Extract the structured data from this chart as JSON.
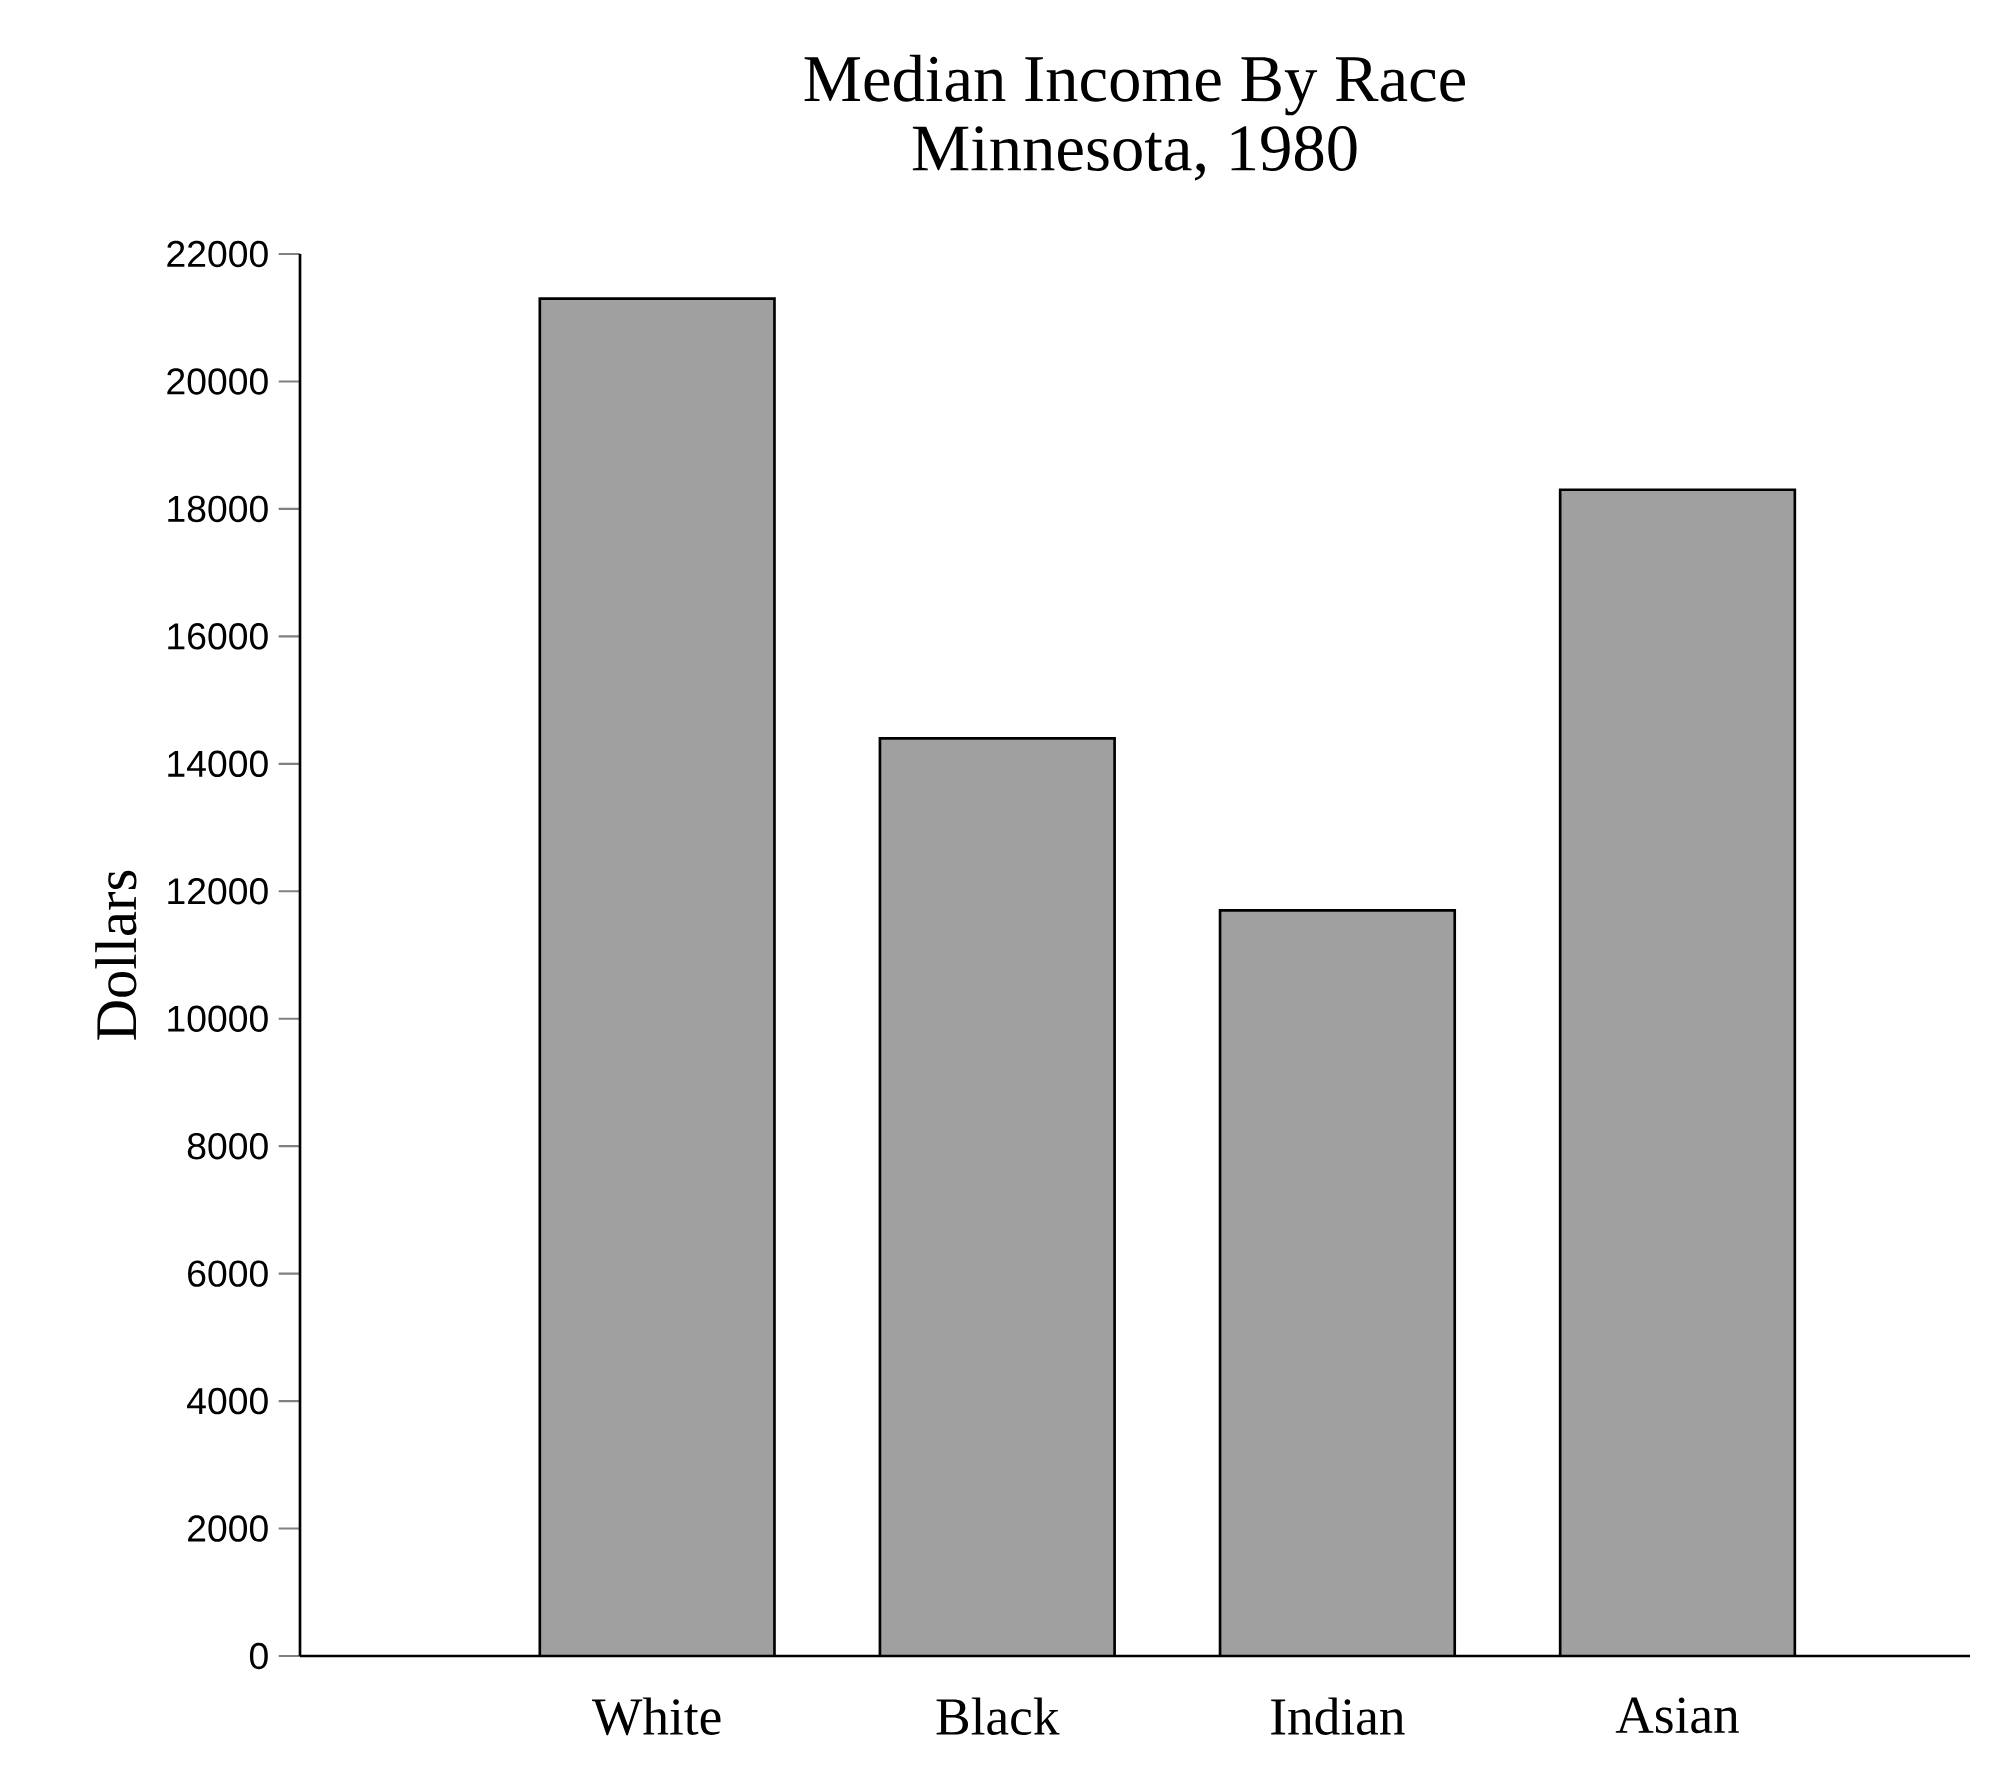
{
  "chart_data": {
    "type": "bar",
    "title": "Median Income By Race",
    "subtitle": "Minnesota, 1980",
    "ylabel": "Dollars",
    "categories": [
      "White",
      "Black",
      "Indian",
      "Asian"
    ],
    "values": [
      21300,
      14400,
      11700,
      18300
    ],
    "color": "#a0a0a0",
    "ylim": [
      0,
      22000
    ],
    "yticks": [
      0,
      2000,
      4000,
      6000,
      8000,
      10000,
      12000,
      14000,
      16000,
      18000,
      20000,
      22000
    ],
    "grid": false
  }
}
